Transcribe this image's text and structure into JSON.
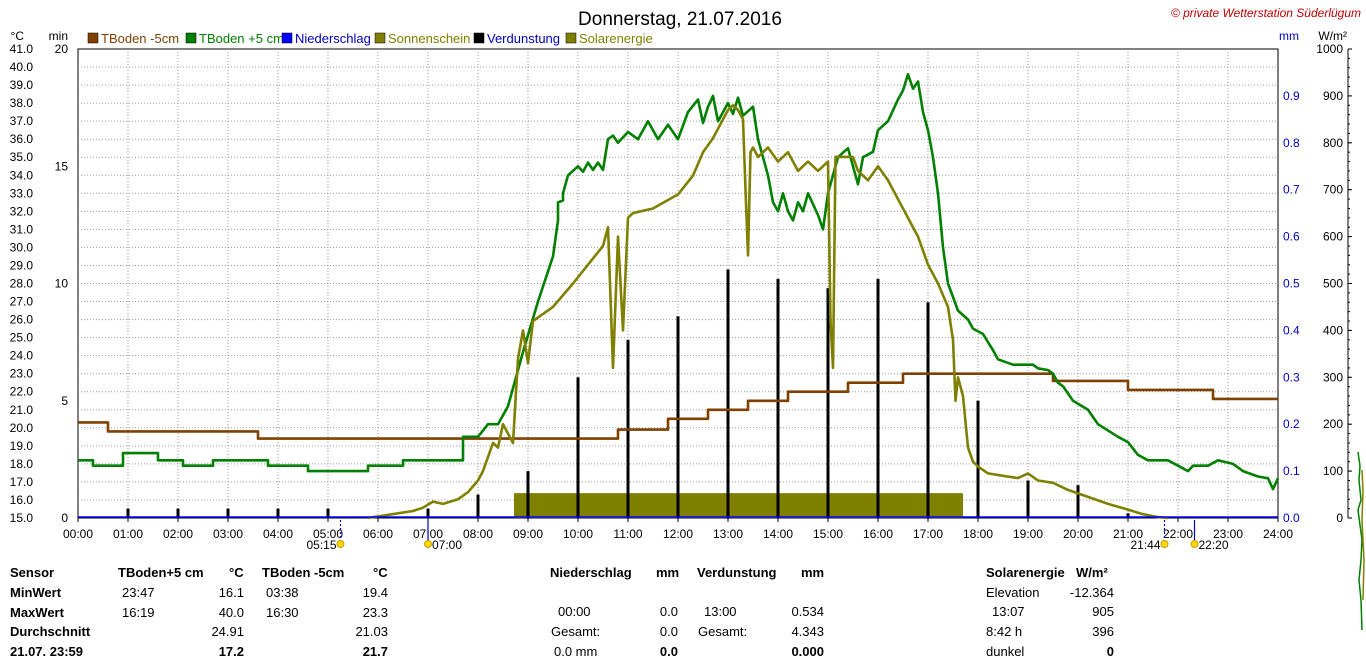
{
  "chart_data": {
    "type": "line",
    "title": "Donnerstag, 21.07.2016",
    "copyright": "© private Wetterstation Süderlügum",
    "axis_units": {
      "celsius": "°C",
      "minutes": "min",
      "mm": "mm",
      "wm2": "W/m²"
    },
    "x": {
      "start": "00:00",
      "end": "24:00",
      "ticks": [
        "00:00",
        "01:00",
        "02:00",
        "03:00",
        "04:00",
        "05:00",
        "06:00",
        "07:00",
        "08:00",
        "09:00",
        "10:00",
        "11:00",
        "12:00",
        "13:00",
        "14:00",
        "15:00",
        "16:00",
        "17:00",
        "18:00",
        "19:00",
        "20:00",
        "21:00",
        "22:00",
        "23:00",
        "24:00"
      ]
    },
    "y_temp": {
      "min": 15.0,
      "max": 41.0,
      "ticks": [
        "15.0",
        "16.0",
        "17.0",
        "18.0",
        "19.0",
        "20.0",
        "21.0",
        "22.0",
        "23.0",
        "24.0",
        "25.0",
        "26.0",
        "27.0",
        "28.0",
        "29.0",
        "30.0",
        "31.0",
        "32.0",
        "33.0",
        "34.0",
        "35.0",
        "36.0",
        "37.0",
        "38.0",
        "39.0",
        "40.0",
        "41.0"
      ]
    },
    "y_min": {
      "min": 0,
      "max": 20,
      "ticks": [
        "0",
        "5",
        "10",
        "15",
        "20"
      ]
    },
    "y_mm": {
      "min": 0.0,
      "max": 1.0,
      "ticks": [
        "0.0",
        "0.1",
        "0.2",
        "0.3",
        "0.4",
        "0.5",
        "0.6",
        "0.7",
        "0.8",
        "0.9"
      ]
    },
    "y_wm2": {
      "min": 0,
      "max": 1000,
      "ticks": [
        "0",
        "100",
        "200",
        "300",
        "400",
        "500",
        "600",
        "700",
        "800",
        "900",
        "1000"
      ]
    },
    "grid": true,
    "legend": [
      {
        "name": "TBoden -5cm",
        "color": "#804000"
      },
      {
        "name": "TBoden +5 cm",
        "color": "#008000"
      },
      {
        "name": "Niederschlag",
        "color": "#0000ff"
      },
      {
        "name": "Sonnenschein",
        "color": "#808000"
      },
      {
        "name": "Verdunstung",
        "color": "#000000"
      },
      {
        "name": "Solarenergie",
        "color": "#808000"
      }
    ],
    "series": [
      {
        "name": "TBoden -5cm",
        "axis": "celsius",
        "color": "#804000",
        "points": [
          [
            0,
            20.3
          ],
          [
            0.6,
            20.3
          ],
          [
            0.6,
            19.8
          ],
          [
            3.6,
            19.8
          ],
          [
            3.6,
            19.4
          ],
          [
            10.8,
            19.4
          ],
          [
            10.8,
            19.9
          ],
          [
            11.8,
            19.9
          ],
          [
            11.8,
            20.5
          ],
          [
            12.6,
            20.5
          ],
          [
            12.6,
            21.0
          ],
          [
            13.4,
            21.0
          ],
          [
            13.4,
            21.5
          ],
          [
            14.2,
            21.5
          ],
          [
            14.2,
            22.0
          ],
          [
            15.4,
            22.0
          ],
          [
            15.4,
            22.5
          ],
          [
            16.5,
            22.5
          ],
          [
            16.5,
            23.0
          ],
          [
            19.5,
            23.0
          ],
          [
            19.5,
            22.6
          ],
          [
            21.0,
            22.6
          ],
          [
            21.0,
            22.1
          ],
          [
            22.7,
            22.1
          ],
          [
            22.7,
            21.6
          ],
          [
            24.0,
            21.6
          ]
        ]
      },
      {
        "name": "TBoden +5 cm",
        "axis": "celsius",
        "color": "#008000",
        "points": [
          [
            0,
            18.2
          ],
          [
            0.3,
            18.2
          ],
          [
            0.3,
            17.9
          ],
          [
            0.9,
            17.9
          ],
          [
            0.9,
            18.6
          ],
          [
            1.6,
            18.6
          ],
          [
            1.6,
            18.2
          ],
          [
            2.1,
            18.2
          ],
          [
            2.1,
            17.9
          ],
          [
            2.7,
            17.9
          ],
          [
            2.7,
            18.2
          ],
          [
            3.8,
            18.2
          ],
          [
            3.8,
            17.9
          ],
          [
            4.6,
            17.9
          ],
          [
            4.6,
            17.6
          ],
          [
            5.8,
            17.6
          ],
          [
            5.8,
            17.9
          ],
          [
            6.5,
            17.9
          ],
          [
            6.5,
            18.2
          ],
          [
            7.7,
            18.2
          ],
          [
            7.7,
            19.5
          ],
          [
            8.0,
            19.5
          ],
          [
            8.2,
            20.2
          ],
          [
            8.4,
            20.2
          ],
          [
            8.6,
            21.2
          ],
          [
            8.9,
            24.2
          ],
          [
            9.2,
            27.0
          ],
          [
            9.5,
            29.5
          ],
          [
            9.6,
            31.5
          ],
          [
            9.6,
            32.5
          ],
          [
            9.7,
            32.6
          ],
          [
            9.7,
            33.0
          ],
          [
            9.8,
            34.0
          ],
          [
            10.0,
            34.5
          ],
          [
            10.1,
            34.2
          ],
          [
            10.2,
            34.7
          ],
          [
            10.3,
            34.3
          ],
          [
            10.4,
            34.7
          ],
          [
            10.5,
            34.3
          ],
          [
            10.6,
            36.0
          ],
          [
            10.7,
            36.2
          ],
          [
            10.8,
            35.8
          ],
          [
            11.0,
            36.4
          ],
          [
            11.2,
            36.0
          ],
          [
            11.4,
            37.0
          ],
          [
            11.6,
            36.0
          ],
          [
            11.8,
            36.8
          ],
          [
            12.0,
            36.0
          ],
          [
            12.2,
            37.5
          ],
          [
            12.4,
            38.2
          ],
          [
            12.5,
            36.9
          ],
          [
            12.6,
            37.8
          ],
          [
            12.7,
            38.4
          ],
          [
            12.8,
            37.0
          ],
          [
            13.0,
            38.0
          ],
          [
            13.1,
            37.4
          ],
          [
            13.2,
            38.3
          ],
          [
            13.3,
            37.3
          ],
          [
            13.5,
            37.8
          ],
          [
            13.6,
            36.0
          ],
          [
            13.8,
            34.0
          ],
          [
            13.9,
            32.5
          ],
          [
            14.0,
            32.0
          ],
          [
            14.1,
            33.0
          ],
          [
            14.2,
            32.0
          ],
          [
            14.3,
            31.5
          ],
          [
            14.4,
            32.5
          ],
          [
            14.5,
            32.0
          ],
          [
            14.6,
            33.0
          ],
          [
            14.8,
            31.8
          ],
          [
            14.9,
            31.0
          ],
          [
            15.0,
            33.0
          ],
          [
            15.2,
            35.0
          ],
          [
            15.4,
            35.5
          ],
          [
            15.5,
            34.5
          ],
          [
            15.6,
            33.5
          ],
          [
            15.7,
            35.0
          ],
          [
            15.9,
            35.3
          ],
          [
            16.0,
            36.5
          ],
          [
            16.2,
            37.0
          ],
          [
            16.4,
            38.2
          ],
          [
            16.5,
            38.7
          ],
          [
            16.6,
            39.6
          ],
          [
            16.7,
            38.8
          ],
          [
            16.8,
            39.2
          ],
          [
            16.9,
            37.5
          ],
          [
            17.0,
            36.5
          ],
          [
            17.1,
            35.0
          ],
          [
            17.2,
            33.0
          ],
          [
            17.3,
            30.0
          ],
          [
            17.4,
            28.0
          ],
          [
            17.6,
            26.5
          ],
          [
            17.8,
            26.0
          ],
          [
            17.9,
            25.5
          ],
          [
            18.1,
            25.2
          ],
          [
            18.3,
            24.3
          ],
          [
            18.4,
            23.8
          ],
          [
            18.7,
            23.5
          ],
          [
            19.1,
            23.5
          ],
          [
            19.2,
            23.3
          ],
          [
            19.4,
            23.2
          ],
          [
            19.5,
            23.0
          ],
          [
            19.6,
            22.5
          ],
          [
            19.7,
            22.3
          ],
          [
            19.9,
            21.5
          ],
          [
            20.2,
            21.0
          ],
          [
            20.4,
            20.2
          ],
          [
            20.8,
            19.5
          ],
          [
            21.0,
            19.2
          ],
          [
            21.2,
            18.5
          ],
          [
            21.4,
            18.2
          ],
          [
            21.8,
            18.2
          ],
          [
            22.0,
            17.9
          ],
          [
            22.2,
            17.6
          ],
          [
            22.3,
            17.9
          ],
          [
            22.6,
            17.9
          ],
          [
            22.8,
            18.2
          ],
          [
            23.1,
            18.0
          ],
          [
            23.3,
            17.6
          ],
          [
            23.6,
            17.3
          ],
          [
            23.8,
            17.2
          ],
          [
            23.9,
            16.6
          ],
          [
            24.0,
            17.2
          ]
        ]
      },
      {
        "name": "Sonnenschein",
        "axis": "wm2",
        "color": "#808000",
        "points": [
          [
            5.8,
            0
          ],
          [
            5.9,
            2
          ],
          [
            6.1,
            5
          ],
          [
            6.4,
            10
          ],
          [
            6.7,
            15
          ],
          [
            6.9,
            22
          ],
          [
            7.1,
            35
          ],
          [
            7.3,
            30
          ],
          [
            7.6,
            40
          ],
          [
            7.8,
            55
          ],
          [
            8.0,
            80
          ],
          [
            8.1,
            100
          ],
          [
            8.2,
            130
          ],
          [
            8.3,
            160
          ],
          [
            8.4,
            150
          ],
          [
            8.5,
            200
          ],
          [
            8.6,
            180
          ],
          [
            8.7,
            160
          ],
          [
            8.8,
            340
          ],
          [
            8.9,
            400
          ],
          [
            9.0,
            330
          ],
          [
            9.1,
            420
          ],
          [
            9.5,
            450
          ],
          [
            9.9,
            500
          ],
          [
            10.2,
            540
          ],
          [
            10.5,
            580
          ],
          [
            10.6,
            620
          ],
          [
            10.7,
            320
          ],
          [
            10.8,
            600
          ],
          [
            10.9,
            400
          ],
          [
            11.0,
            640
          ],
          [
            11.1,
            650
          ],
          [
            11.5,
            660
          ],
          [
            12.0,
            690
          ],
          [
            12.3,
            730
          ],
          [
            12.5,
            780
          ],
          [
            12.7,
            810
          ],
          [
            12.9,
            850
          ],
          [
            13.0,
            870
          ],
          [
            13.1,
            880
          ],
          [
            13.2,
            870
          ],
          [
            13.3,
            850
          ],
          [
            13.35,
            700
          ],
          [
            13.4,
            560
          ],
          [
            13.45,
            780
          ],
          [
            13.5,
            790
          ],
          [
            13.6,
            770
          ],
          [
            13.8,
            790
          ],
          [
            14.0,
            760
          ],
          [
            14.2,
            780
          ],
          [
            14.4,
            740
          ],
          [
            14.6,
            760
          ],
          [
            14.8,
            740
          ],
          [
            15.0,
            760
          ],
          [
            15.05,
            420
          ],
          [
            15.1,
            320
          ],
          [
            15.15,
            770
          ],
          [
            15.3,
            770
          ],
          [
            15.5,
            770
          ],
          [
            15.6,
            740
          ],
          [
            15.8,
            720
          ],
          [
            16.0,
            750
          ],
          [
            16.2,
            720
          ],
          [
            16.5,
            660
          ],
          [
            16.8,
            600
          ],
          [
            17.0,
            540
          ],
          [
            17.2,
            500
          ],
          [
            17.4,
            450
          ],
          [
            17.5,
            380
          ],
          [
            17.55,
            250
          ],
          [
            17.6,
            300
          ],
          [
            17.7,
            260
          ],
          [
            17.8,
            150
          ],
          [
            17.9,
            120
          ],
          [
            18.0,
            110
          ],
          [
            18.2,
            95
          ],
          [
            18.5,
            90
          ],
          [
            18.8,
            85
          ],
          [
            19.0,
            95
          ],
          [
            19.2,
            80
          ],
          [
            19.5,
            75
          ],
          [
            19.8,
            60
          ],
          [
            20.2,
            45
          ],
          [
            20.6,
            30
          ],
          [
            21.0,
            18
          ],
          [
            21.3,
            8
          ],
          [
            21.6,
            2
          ],
          [
            21.8,
            0
          ]
        ]
      },
      {
        "name": "Solarenergie",
        "axis": "wm2",
        "color": "#808000",
        "style": "area",
        "points": [
          [
            8.72,
            53
          ],
          [
            17.7,
            53
          ]
        ]
      }
    ],
    "verdunstung_bars": {
      "axis": "mm",
      "hours": [
        1,
        2,
        3,
        4,
        5,
        7,
        8,
        9,
        10,
        11,
        12,
        13,
        14,
        15,
        16,
        17,
        18,
        19,
        20,
        21
      ],
      "values": [
        0.02,
        0.02,
        0.02,
        0.02,
        0.02,
        0.02,
        0.05,
        0.1,
        0.3,
        0.38,
        0.43,
        0.53,
        0.51,
        0.49,
        0.51,
        0.46,
        0.25,
        0.08,
        0.07,
        0.01
      ]
    },
    "sun_markers": [
      {
        "label": "05:15",
        "hour": 5.25
      },
      {
        "label": "07:00",
        "hour": 7.0
      },
      {
        "label": "21:44",
        "hour": 21.73
      },
      {
        "label": "22:20",
        "hour": 22.33
      }
    ]
  },
  "stats": {
    "sensor": "Sensor",
    "rows": [
      "MinWert",
      "MaxWert",
      "Durchschnitt",
      "21.07. 23:59"
    ],
    "tb5": {
      "header": "TBoden+5 cm",
      "unit": "°C",
      "min_time": "23:47",
      "min": "16.1",
      "max_time": "16:19",
      "max": "40.0",
      "avg": "24.91",
      "current": "17.2"
    },
    "tbm5": {
      "header": "TBoden -5cm",
      "unit": "°C",
      "min_time": "03:38",
      "min": "19.4",
      "max_time": "16:30",
      "max": "23.3",
      "avg": "21.03",
      "current": "21.7"
    },
    "rain": {
      "header": "Niederschlag",
      "unit": "mm",
      "time": "00:00",
      "max": "0.0",
      "total_label": "Gesamt:",
      "total": "0.0",
      "current_label": "0.0 mm",
      "current": "0.0"
    },
    "evap": {
      "header": "Verdunstung",
      "unit": "mm",
      "time": "13:00",
      "max": "0.534",
      "total_label": "Gesamt:",
      "total": "4.343",
      "current": "0.000"
    },
    "solar": {
      "header": "Solarenergie",
      "unit": "W/m²",
      "elev_label": "Elevation",
      "elev": "-12.364",
      "time": "13:07",
      "max": "905",
      "dur_label": "8:42 h",
      "dur_val": "396",
      "dark_label": "dunkel",
      "dark": "0"
    }
  }
}
